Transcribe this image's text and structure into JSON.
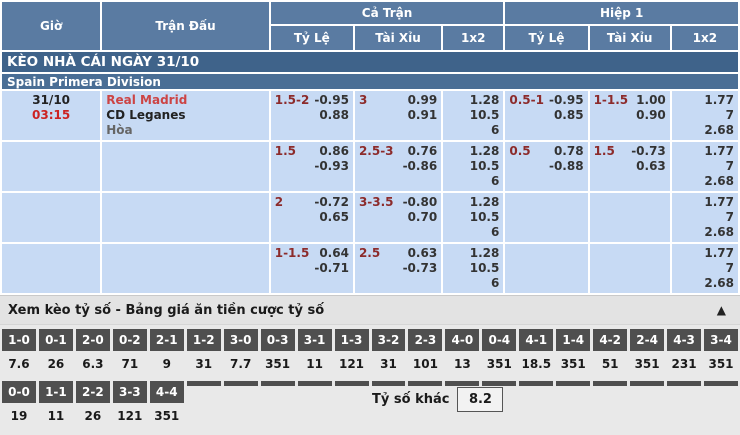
{
  "header": {
    "col_time": "Giờ",
    "col_match": "Trận Đấu",
    "group_full": "Cả Trận",
    "group_half": "Hiệp 1",
    "sub_hdp": "Tỷ Lệ",
    "sub_ou": "Tài Xỉu",
    "sub_1x2": "1x2"
  },
  "title_bar": "KÈO NHÀ CÁI NGÀY 31/10",
  "league": "Spain Primera Division",
  "match": {
    "date": "31/10",
    "time": "03:15",
    "home": "Real Madrid",
    "away": "CD Leganes",
    "draw": "Hòa"
  },
  "odds_rows": [
    {
      "ft_hdp": {
        "hc": "1.5-2",
        "o1": "-0.95",
        "o2": "0.88"
      },
      "ft_ou": {
        "hc": "3",
        "o1": "0.99",
        "o2": "0.91"
      },
      "ft_1x2": [
        "1.28",
        "10.5",
        "6"
      ],
      "h1_hdp": {
        "hc": "0.5-1",
        "o1": "-0.95",
        "o2": "0.85"
      },
      "h1_ou": {
        "hc": "1-1.5",
        "o1": "1.00",
        "o2": "0.90"
      },
      "h1_1x2": [
        "1.77",
        "7",
        "2.68"
      ]
    },
    {
      "ft_hdp": {
        "hc": "1.5",
        "o1": "0.86",
        "o2": "-0.93"
      },
      "ft_ou": {
        "hc": "2.5-3",
        "o1": "0.76",
        "o2": "-0.86"
      },
      "ft_1x2": [
        "1.28",
        "10.5",
        "6"
      ],
      "h1_hdp": {
        "hc": "0.5",
        "o1": "0.78",
        "o2": "-0.88"
      },
      "h1_ou": {
        "hc": "1.5",
        "o1": "-0.73",
        "o2": "0.63"
      },
      "h1_1x2": [
        "1.77",
        "7",
        "2.68"
      ]
    },
    {
      "ft_hdp": {
        "hc": "2",
        "o1": "-0.72",
        "o2": "0.65"
      },
      "ft_ou": {
        "hc": "3-3.5",
        "o1": "-0.80",
        "o2": "0.70"
      },
      "ft_1x2": [
        "1.28",
        "10.5",
        "6"
      ],
      "h1_hdp": null,
      "h1_ou": null,
      "h1_1x2": [
        "1.77",
        "7",
        "2.68"
      ]
    },
    {
      "ft_hdp": {
        "hc": "1-1.5",
        "o1": "0.64",
        "o2": "-0.71"
      },
      "ft_ou": {
        "hc": "2.5",
        "o1": "0.63",
        "o2": "-0.73"
      },
      "ft_1x2": [
        "1.28",
        "10.5",
        "6"
      ],
      "h1_hdp": null,
      "h1_ou": null,
      "h1_1x2": [
        "1.77",
        "7",
        "2.68"
      ]
    }
  ],
  "score_section": {
    "bar_label": "Xem kèo tỷ số - Bảng giá ăn tiền cược tỷ số",
    "collapse_icon": "▲",
    "row1": [
      {
        "score": "1-0",
        "odds": "7.6"
      },
      {
        "score": "0-1",
        "odds": "26"
      },
      {
        "score": "2-0",
        "odds": "6.3"
      },
      {
        "score": "0-2",
        "odds": "71"
      },
      {
        "score": "2-1",
        "odds": "9"
      },
      {
        "score": "1-2",
        "odds": "31"
      },
      {
        "score": "3-0",
        "odds": "7.7"
      },
      {
        "score": "0-3",
        "odds": "351"
      },
      {
        "score": "3-1",
        "odds": "11"
      },
      {
        "score": "1-3",
        "odds": "121"
      },
      {
        "score": "3-2",
        "odds": "31"
      },
      {
        "score": "2-3",
        "odds": "101"
      },
      {
        "score": "4-0",
        "odds": "13"
      },
      {
        "score": "0-4",
        "odds": "351"
      },
      {
        "score": "4-1",
        "odds": "18.5"
      },
      {
        "score": "1-4",
        "odds": "351"
      },
      {
        "score": "4-2",
        "odds": "51"
      },
      {
        "score": "2-4",
        "odds": "351"
      },
      {
        "score": "4-3",
        "odds": "231"
      },
      {
        "score": "3-4",
        "odds": "351"
      }
    ],
    "row2": [
      {
        "score": "0-0",
        "odds": "19"
      },
      {
        "score": "1-1",
        "odds": "11"
      },
      {
        "score": "2-2",
        "odds": "26"
      },
      {
        "score": "3-3",
        "odds": "121"
      },
      {
        "score": "4-4",
        "odds": "351"
      }
    ],
    "other_label": "Tỷ số khác",
    "other_value": "8.2"
  },
  "colors": {
    "header_blue": "#5a7ba2",
    "title_blue": "#3f638a",
    "league_blue": "#4a6e95",
    "cell_blue": "#c7daf4",
    "handicap_red": "#8c2b2b",
    "team_red": "#cc4444",
    "time_red": "#cc2222",
    "dark_box": "#4f4f4f",
    "section_bg": "#e9e9e9",
    "bar_bg": "#e3e3e3"
  }
}
